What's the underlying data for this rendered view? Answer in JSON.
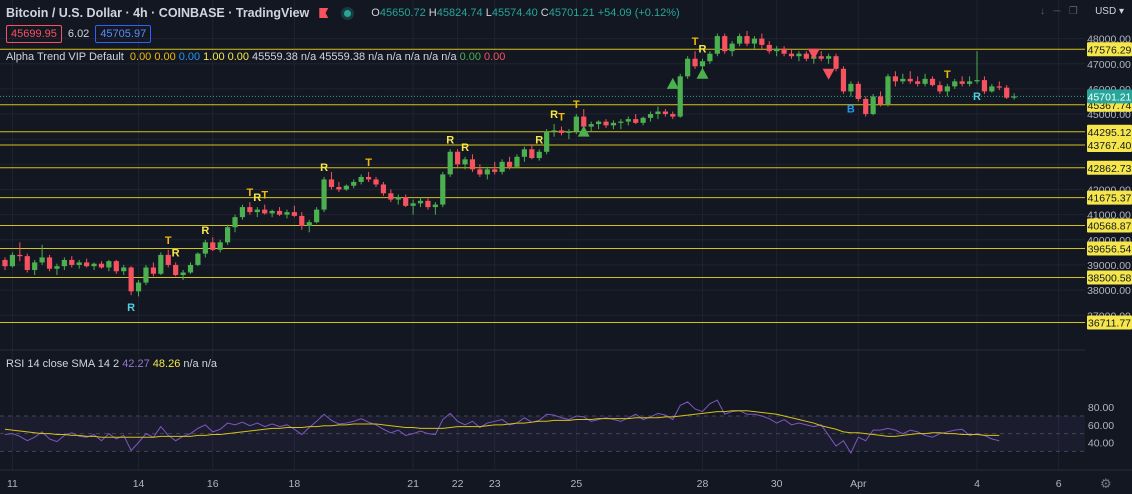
{
  "header": {
    "title": "Bitcoin / U.S. Dollar · 4h · COINBASE · TradingView",
    "ohlc": [
      {
        "k": "O",
        "v": "45650.72"
      },
      {
        "k": "H",
        "v": "45824.74"
      },
      {
        "k": "L",
        "v": "45574.40"
      },
      {
        "k": "C",
        "v": "45701.21"
      }
    ],
    "change": "+54.09 (+0.12%)",
    "sell_price": "45699.95",
    "spread": "6.02",
    "buy_price": "45705.97",
    "currency": "USD"
  },
  "indicator": {
    "name": "Alpha Trend VIP Default",
    "values": [
      {
        "t": "0.00",
        "c": "c-o"
      },
      {
        "t": "0.00",
        "c": "c-o"
      },
      {
        "t": "0.00",
        "c": "c-b"
      },
      {
        "t": "1.00",
        "c": "c-y"
      },
      {
        "t": "0.00",
        "c": "c-y"
      },
      {
        "t": "45559.38",
        "c": "c-w"
      },
      {
        "t": "n/a",
        "c": "c-w"
      },
      {
        "t": "45559.38",
        "c": "c-w"
      },
      {
        "t": "n/a",
        "c": "c-w"
      },
      {
        "t": "n/a",
        "c": "c-w"
      },
      {
        "t": "n/a",
        "c": "c-w"
      },
      {
        "t": "n/a",
        "c": "c-w"
      },
      {
        "t": "n/a",
        "c": "c-w"
      },
      {
        "t": "0.00",
        "c": "c-g"
      },
      {
        "t": "0.00",
        "c": "c-r"
      }
    ]
  },
  "rsi_legend": {
    "name": "RSI 14 close SMA 14 2",
    "rsi": "42.27",
    "sma": "48.26",
    "na1": "n/a",
    "na2": "n/a"
  },
  "colors": {
    "up": "#4caf50",
    "down": "#f7525f",
    "level": "#d4c21a",
    "rsi": "#7e57c2",
    "rsi_ma": "#d4c21a",
    "bg": "#131722"
  },
  "chart_data": {
    "type": "candlestick",
    "price_axis": {
      "ticks": [
        48000,
        47000,
        46000,
        45000,
        44000,
        43000,
        42000,
        41000,
        40000,
        39000,
        38000,
        37000
      ]
    },
    "x_ticks": [
      {
        "label": "11",
        "i": 1
      },
      {
        "label": "14",
        "i": 18
      },
      {
        "label": "16",
        "i": 28
      },
      {
        "label": "18",
        "i": 39
      },
      {
        "label": "21",
        "i": 55
      },
      {
        "label": "22",
        "i": 61
      },
      {
        "label": "23",
        "i": 66
      },
      {
        "label": "25",
        "i": 77
      },
      {
        "label": "28",
        "i": 94
      },
      {
        "label": "30",
        "i": 104
      },
      {
        "label": "Apr",
        "i": 115
      },
      {
        "label": "4",
        "i": 131
      },
      {
        "label": "6",
        "i": 142
      }
    ],
    "levels": [
      "47576.29",
      "45367.74",
      "44295.12",
      "43767.40",
      "42862.73",
      "41675.37",
      "40568.87",
      "39656.54",
      "38500.58",
      "36711.77"
    ],
    "current_price": "45701.21",
    "candles": [
      [
        39200,
        39300,
        38800,
        38950
      ],
      [
        38950,
        39500,
        38900,
        39400
      ],
      [
        39400,
        39900,
        39150,
        39350
      ],
      [
        39350,
        39450,
        38700,
        38800
      ],
      [
        38800,
        39200,
        38600,
        39100
      ],
      [
        39100,
        39800,
        39000,
        39300
      ],
      [
        39300,
        39400,
        38750,
        38850
      ],
      [
        38850,
        39050,
        38600,
        38950
      ],
      [
        38950,
        39300,
        38800,
        39200
      ],
      [
        39200,
        39350,
        38900,
        39000
      ],
      [
        39000,
        39200,
        38850,
        39100
      ],
      [
        39100,
        39250,
        38900,
        38950
      ],
      [
        38950,
        39100,
        38800,
        39050
      ],
      [
        39050,
        39150,
        38850,
        38900
      ],
      [
        38900,
        39200,
        38750,
        39150
      ],
      [
        39150,
        39200,
        38650,
        38750
      ],
      [
        38750,
        39000,
        38600,
        38900
      ],
      [
        38900,
        38950,
        37800,
        37950
      ],
      [
        37950,
        38400,
        37750,
        38300
      ],
      [
        38300,
        39000,
        38200,
        38900
      ],
      [
        38900,
        39100,
        38550,
        38650
      ],
      [
        38650,
        39500,
        38600,
        39400
      ],
      [
        39400,
        39600,
        38900,
        39000
      ],
      [
        39000,
        39100,
        38550,
        38600
      ],
      [
        38600,
        38800,
        38400,
        38700
      ],
      [
        38700,
        39100,
        38650,
        39000
      ],
      [
        39000,
        39500,
        38950,
        39450
      ],
      [
        39450,
        40000,
        39300,
        39900
      ],
      [
        39900,
        40100,
        39550,
        39600
      ],
      [
        39600,
        40000,
        39500,
        39900
      ],
      [
        39900,
        40600,
        39800,
        40500
      ],
      [
        40500,
        41000,
        40300,
        40900
      ],
      [
        40900,
        41400,
        40800,
        41300
      ],
      [
        41300,
        41500,
        41000,
        41100
      ],
      [
        41100,
        41300,
        40900,
        41200
      ],
      [
        41200,
        41400,
        41000,
        41050
      ],
      [
        41050,
        41200,
        40900,
        41150
      ],
      [
        41150,
        41300,
        40950,
        41000
      ],
      [
        41000,
        41200,
        40850,
        41100
      ],
      [
        41100,
        41350,
        40900,
        40950
      ],
      [
        40950,
        41100,
        40400,
        40550
      ],
      [
        40550,
        40800,
        40300,
        40700
      ],
      [
        40700,
        41300,
        40650,
        41200
      ],
      [
        41200,
        42500,
        41100,
        42400
      ],
      [
        42400,
        42700,
        42000,
        42100
      ],
      [
        42100,
        42300,
        41900,
        42000
      ],
      [
        42000,
        42200,
        41950,
        42150
      ],
      [
        42150,
        42400,
        42050,
        42300
      ],
      [
        42300,
        42600,
        42200,
        42500
      ],
      [
        42500,
        42700,
        42300,
        42400
      ],
      [
        42400,
        42500,
        42100,
        42200
      ],
      [
        42200,
        42300,
        41750,
        41850
      ],
      [
        41850,
        42000,
        41500,
        41600
      ],
      [
        41600,
        41800,
        41400,
        41700
      ],
      [
        41700,
        41800,
        41300,
        41350
      ],
      [
        41350,
        41600,
        41000,
        41450
      ],
      [
        41450,
        41700,
        41300,
        41550
      ],
      [
        41550,
        41650,
        41200,
        41300
      ],
      [
        41300,
        41500,
        41000,
        41400
      ],
      [
        41400,
        42700,
        41300,
        42600
      ],
      [
        42600,
        43600,
        42500,
        43500
      ],
      [
        43500,
        43600,
        42900,
        43000
      ],
      [
        43000,
        43300,
        42800,
        43200
      ],
      [
        43200,
        43400,
        42700,
        42800
      ],
      [
        42800,
        43000,
        42500,
        42600
      ],
      [
        42600,
        42900,
        42400,
        42800
      ],
      [
        42800,
        43100,
        42600,
        42700
      ],
      [
        42700,
        43200,
        42600,
        43100
      ],
      [
        43100,
        43300,
        42800,
        42900
      ],
      [
        42900,
        43400,
        42850,
        43300
      ],
      [
        43300,
        43700,
        43100,
        43600
      ],
      [
        43600,
        43800,
        43200,
        43250
      ],
      [
        43250,
        43600,
        43150,
        43500
      ],
      [
        43500,
        44400,
        43400,
        44300
      ],
      [
        44300,
        44600,
        44100,
        44350
      ],
      [
        44350,
        44500,
        44150,
        44250
      ],
      [
        44250,
        44400,
        44000,
        44300
      ],
      [
        44300,
        45000,
        44200,
        44900
      ],
      [
        44900,
        45200,
        44400,
        44500
      ],
      [
        44500,
        44700,
        44300,
        44600
      ],
      [
        44600,
        44750,
        44400,
        44700
      ],
      [
        44700,
        44800,
        44450,
        44550
      ],
      [
        44550,
        44750,
        44400,
        44650
      ],
      [
        44650,
        44800,
        44400,
        44700
      ],
      [
        44700,
        44900,
        44550,
        44800
      ],
      [
        44800,
        45000,
        44600,
        44650
      ],
      [
        44650,
        44900,
        44550,
        44850
      ],
      [
        44850,
        45100,
        44700,
        45000
      ],
      [
        45000,
        45300,
        44800,
        45100
      ],
      [
        45100,
        45200,
        44900,
        45000
      ],
      [
        45000,
        45100,
        44800,
        44900
      ],
      [
        44900,
        46600,
        44850,
        46500
      ],
      [
        46500,
        47300,
        46400,
        47200
      ],
      [
        47200,
        47500,
        46800,
        46900
      ],
      [
        46900,
        47200,
        46700,
        47100
      ],
      [
        47100,
        47500,
        47000,
        47400
      ],
      [
        47400,
        48200,
        47300,
        48100
      ],
      [
        48100,
        48200,
        47400,
        47500
      ],
      [
        47500,
        47900,
        47300,
        47800
      ],
      [
        47800,
        48200,
        47700,
        48100
      ],
      [
        48100,
        48300,
        47700,
        47800
      ],
      [
        47800,
        48100,
        47600,
        48000
      ],
      [
        48000,
        48200,
        47600,
        47750
      ],
      [
        47750,
        47900,
        47400,
        47500
      ],
      [
        47500,
        47700,
        47300,
        47600
      ],
      [
        47600,
        47700,
        47300,
        47400
      ],
      [
        47400,
        47600,
        47200,
        47300
      ],
      [
        47300,
        47500,
        47100,
        47400
      ],
      [
        47400,
        47500,
        47100,
        47200
      ],
      [
        47200,
        47400,
        47000,
        47300
      ],
      [
        47300,
        47500,
        47100,
        47200
      ],
      [
        47200,
        47400,
        47000,
        47300
      ],
      [
        47300,
        47400,
        46700,
        46800
      ],
      [
        46800,
        46900,
        45800,
        45900
      ],
      [
        45900,
        46300,
        45700,
        46200
      ],
      [
        46200,
        46300,
        45500,
        45600
      ],
      [
        45600,
        45700,
        44900,
        45000
      ],
      [
        45000,
        45800,
        44950,
        45700
      ],
      [
        45700,
        45900,
        45300,
        45400
      ],
      [
        45400,
        46600,
        45300,
        46500
      ],
      [
        46500,
        46700,
        46100,
        46300
      ],
      [
        46300,
        46600,
        46200,
        46400
      ],
      [
        46400,
        46700,
        46200,
        46300
      ],
      [
        46300,
        46500,
        46100,
        46200
      ],
      [
        46200,
        46600,
        46100,
        46400
      ],
      [
        46400,
        46500,
        46100,
        46150
      ],
      [
        46150,
        46300,
        45800,
        45900
      ],
      [
        45900,
        46200,
        45700,
        46100
      ],
      [
        46100,
        46400,
        46000,
        46300
      ],
      [
        46300,
        46500,
        46100,
        46200
      ],
      [
        46200,
        46500,
        46100,
        46300
      ],
      [
        46300,
        47500,
        46200,
        46350
      ],
      [
        46350,
        46500,
        45800,
        45900
      ],
      [
        45900,
        46200,
        45850,
        46100
      ],
      [
        46100,
        46300,
        45950,
        46050
      ],
      [
        46050,
        46150,
        45600,
        45650
      ],
      [
        45650,
        45825,
        45574,
        45701
      ]
    ],
    "signals": [
      {
        "i": 17,
        "t": "R",
        "c": "#4dd0e1",
        "pos": "below"
      },
      {
        "i": 22,
        "t": "T",
        "c": "#f0b90b",
        "pos": "above"
      },
      {
        "i": 23,
        "t": "R",
        "c": "#f5e74b",
        "pos": "above"
      },
      {
        "i": 27,
        "t": "R",
        "c": "#f5e74b",
        "pos": "above"
      },
      {
        "i": 33,
        "t": "T",
        "c": "#f0b90b",
        "pos": "above"
      },
      {
        "i": 34,
        "t": "R",
        "c": "#f5e74b",
        "pos": "above"
      },
      {
        "i": 35,
        "t": "T",
        "c": "#f0b90b",
        "pos": "above"
      },
      {
        "i": 43,
        "t": "R",
        "c": "#f5e74b",
        "pos": "above"
      },
      {
        "i": 49,
        "t": "T",
        "c": "#f0b90b",
        "pos": "above"
      },
      {
        "i": 60,
        "t": "R",
        "c": "#f5e74b",
        "pos": "above"
      },
      {
        "i": 62,
        "t": "R",
        "c": "#f5e74b",
        "pos": "above"
      },
      {
        "i": 72,
        "t": "R",
        "c": "#f5e74b",
        "pos": "above"
      },
      {
        "i": 74,
        "t": "R",
        "c": "#f5e74b",
        "pos": "above"
      },
      {
        "i": 75,
        "t": "T",
        "c": "#f0b90b",
        "pos": "above"
      },
      {
        "i": 77,
        "t": "T",
        "c": "#f0b90b",
        "pos": "above"
      },
      {
        "i": 93,
        "t": "T",
        "c": "#f0b90b",
        "pos": "above"
      },
      {
        "i": 94,
        "t": "R",
        "c": "#f5e74b",
        "pos": "above"
      },
      {
        "i": 127,
        "t": "T",
        "c": "#f0b90b",
        "pos": "above"
      },
      {
        "i": 114,
        "t": "B",
        "c": "#2196f3",
        "pos": "below"
      },
      {
        "i": 131,
        "t": "R",
        "c": "#4dd0e1",
        "pos": "below"
      }
    ],
    "arrows": [
      {
        "i": 78,
        "dir": "up",
        "price": 44300
      },
      {
        "i": 90,
        "dir": "up",
        "price": 46200
      },
      {
        "i": 94,
        "dir": "up",
        "price": 46600
      },
      {
        "i": 109,
        "dir": "down",
        "price": 47400
      },
      {
        "i": 111,
        "dir": "down",
        "price": 46600
      }
    ],
    "rsi": {
      "ticks": [
        80,
        60,
        40
      ],
      "values": [
        49,
        50,
        47,
        42,
        46,
        52,
        44,
        41,
        48,
        51,
        47,
        46,
        49,
        42,
        50,
        44,
        48,
        31,
        40,
        50,
        46,
        58,
        48,
        42,
        47,
        50,
        56,
        60,
        52,
        55,
        62,
        60,
        63,
        59,
        62,
        58,
        61,
        58,
        60,
        55,
        49,
        57,
        64,
        72,
        65,
        61,
        62,
        64,
        67,
        63,
        60,
        55,
        51,
        54,
        48,
        50,
        53,
        50,
        49,
        66,
        73,
        64,
        60,
        64,
        57,
        62,
        64,
        66,
        60,
        62,
        68,
        63,
        65,
        72,
        71,
        68,
        66,
        70,
        69,
        64,
        66,
        68,
        66,
        64,
        68,
        72,
        66,
        69,
        73,
        71,
        66,
        82,
        86,
        78,
        75,
        84,
        88,
        72,
        75,
        76,
        72,
        72,
        70,
        67,
        62,
        66,
        60,
        62,
        60,
        58,
        60,
        48,
        36,
        42,
        28,
        46,
        42,
        54,
        54,
        56,
        54,
        50,
        54,
        52,
        48,
        46,
        50,
        52,
        54,
        55,
        48,
        50,
        48,
        44,
        42
      ],
      "ma": [
        55,
        54,
        53,
        52,
        51,
        50,
        50,
        49,
        49,
        48,
        48,
        47,
        47,
        46,
        46,
        46,
        46,
        46,
        46,
        46,
        46,
        47,
        47,
        47,
        47,
        47,
        48,
        48,
        49,
        49,
        50,
        51,
        52,
        53,
        54,
        55,
        56,
        56,
        57,
        57,
        57,
        58,
        58,
        59,
        59,
        60,
        60,
        61,
        61,
        61,
        61,
        60,
        59,
        58,
        57,
        57,
        56,
        56,
        56,
        56,
        57,
        58,
        58,
        58,
        58,
        59,
        60,
        60,
        61,
        62,
        62,
        63,
        64,
        64,
        65,
        65,
        65,
        66,
        66,
        66,
        67,
        67,
        67,
        67,
        67,
        68,
        68,
        68,
        68,
        69,
        69,
        70,
        71,
        72,
        73,
        74,
        75,
        75,
        76,
        76,
        76,
        75,
        74,
        73,
        72,
        70,
        68,
        66,
        64,
        62,
        59,
        57,
        55,
        52,
        51,
        51,
        50,
        49,
        48,
        47,
        47,
        48,
        49,
        50,
        50,
        51,
        51,
        50,
        50,
        49,
        49,
        49,
        48,
        48,
        48
      ]
    }
  }
}
